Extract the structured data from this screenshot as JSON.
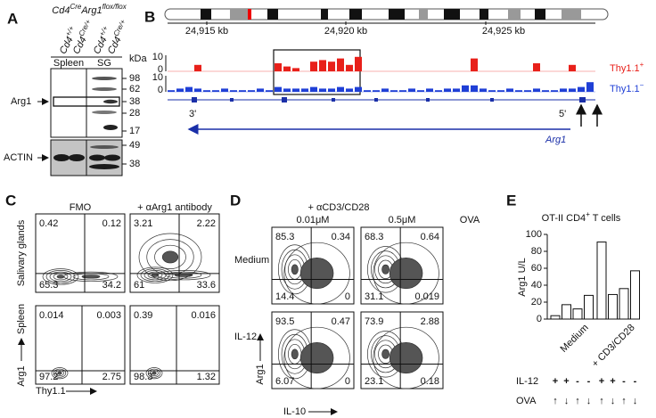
{
  "panel_letters": [
    "A",
    "B",
    "C",
    "D",
    "E"
  ],
  "panel_a": {
    "title": [
      "Cd4",
      "Cre",
      "Arg1",
      "flox/flox"
    ],
    "lanes": [
      [
        "Cd4",
        "+/+"
      ],
      [
        "Cd4",
        "Cre/+"
      ],
      [
        "Cd4",
        "+/+"
      ],
      [
        "Cd4",
        "Cre/+"
      ]
    ],
    "tissues": [
      "Spleen",
      "SG"
    ],
    "kda_label": "kDa",
    "markers_top": [
      98,
      62,
      38,
      28,
      17
    ],
    "markers_bottom": [
      49,
      38
    ],
    "bands": [
      "Arg1",
      "ACTIN"
    ]
  },
  "panel_b": {
    "coordinates": [
      "24,915 kb",
      "24,920 kb",
      "24,925 kb"
    ],
    "tracks": [
      {
        "name": [
          "Thy1.1",
          "+"
        ],
        "color": "#e8201a",
        "scale": [
          10,
          0
        ],
        "values": [
          0,
          0,
          0,
          4,
          0,
          0,
          0,
          0,
          0,
          0,
          0,
          0,
          5,
          3,
          2,
          0,
          6,
          7,
          6,
          8,
          4,
          9,
          0,
          0,
          0,
          0,
          0,
          0,
          0,
          0,
          0,
          0,
          0,
          0,
          8,
          0,
          0,
          0,
          0,
          0,
          0,
          5,
          0,
          0,
          0,
          4,
          0,
          0
        ]
      },
      {
        "name": [
          "Thy1.1",
          "−"
        ],
        "color": "#1f3fd6",
        "scale": [
          10,
          0
        ],
        "values": [
          1,
          2,
          3,
          2,
          1,
          1,
          2,
          1,
          1,
          1,
          2,
          1,
          3,
          2,
          2,
          2,
          3,
          2,
          2,
          3,
          2,
          3,
          1,
          1,
          2,
          1,
          1,
          2,
          1,
          2,
          1,
          2,
          2,
          4,
          4,
          2,
          1,
          1,
          2,
          1,
          1,
          2,
          1,
          1,
          2,
          2,
          3,
          6
        ]
      }
    ],
    "gene_ends": [
      "3'",
      "5'"
    ],
    "gene": "Arg1"
  },
  "panel_c": {
    "columns": [
      "FMO",
      "+ αArg1 antibody"
    ],
    "rows": [
      "Salivary glands",
      "Spleen"
    ],
    "quadrants": [
      [
        [
          0.42,
          0.12,
          65.3,
          34.2
        ],
        [
          3.21,
          2.22,
          61,
          33.6
        ]
      ],
      [
        [
          0.014,
          0.003,
          97.2,
          2.75
        ],
        [
          0.39,
          0.016,
          98.3,
          1.32
        ]
      ]
    ],
    "y_axis": "Arg1",
    "x_axis": "Thy1.1"
  },
  "panel_d": {
    "header": "+ αCD3/CD28",
    "columns": [
      "0.01μM",
      "0.5μM"
    ],
    "extra_column": "OVA",
    "rows": [
      "Medium",
      "IL-12"
    ],
    "quadrants": [
      [
        [
          85.3,
          0.34,
          14.4,
          0
        ],
        [
          68.3,
          0.64,
          31.1,
          0.019
        ]
      ],
      [
        [
          93.5,
          0.47,
          6.07,
          0
        ],
        [
          73.9,
          2.88,
          23.1,
          0.18
        ]
      ]
    ],
    "y_axis": "Arg1",
    "x_axis": "IL-10"
  },
  "chart_data": {
    "type": "bar",
    "title": [
      "OT-II CD4",
      "+",
      " T cells"
    ],
    "ylabel": "Arg1 U/L",
    "ylim": [
      0,
      100
    ],
    "yticks": [
      0,
      20,
      40,
      60,
      80,
      100
    ],
    "values": [
      4,
      17,
      12,
      28,
      91,
      29,
      36,
      57
    ],
    "color": "#ffffff",
    "groups": [
      "Medium",
      "+ CD3/CD28"
    ],
    "rows": [
      {
        "label": "IL-12",
        "marks": [
          "+",
          "+",
          "-",
          "-",
          "+",
          "+",
          "-",
          "-"
        ]
      },
      {
        "label": "OVA",
        "marks": [
          "↑",
          "↓",
          "↑",
          "↓",
          "↑",
          "↓",
          "↑",
          "↓"
        ]
      }
    ]
  }
}
